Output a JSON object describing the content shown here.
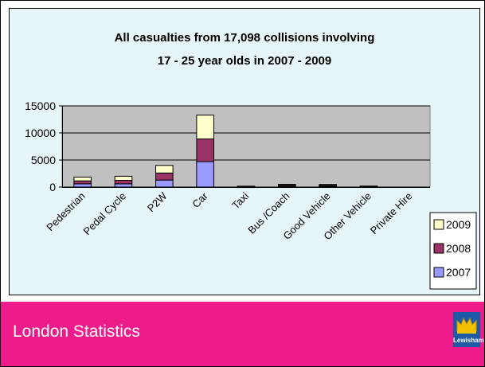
{
  "chart_data": {
    "type": "bar",
    "stacked": true,
    "title": [
      "All casualties from 17,098 collisions involving",
      "17 - 25 year olds in 2007 - 2009"
    ],
    "categories": [
      "Pedestrian",
      "Pedal Cycle",
      "P2W",
      "Car",
      "Taxi",
      "Bus /Coach",
      "Good Vehicle",
      "Other Vehicle",
      "Private Hire"
    ],
    "series": [
      {
        "name": "2007",
        "color": "#9999ff",
        "values": [
          600,
          600,
          1300,
          4700,
          60,
          180,
          170,
          70,
          0
        ]
      },
      {
        "name": "2008",
        "color": "#993366",
        "values": [
          550,
          650,
          1300,
          4200,
          50,
          170,
          150,
          60,
          0
        ]
      },
      {
        "name": "2009",
        "color": "#ffffcc",
        "values": [
          700,
          750,
          1400,
          4400,
          60,
          170,
          170,
          60,
          0
        ]
      }
    ],
    "yticks": [
      0,
      5000,
      10000,
      15000
    ],
    "ylim": [
      0,
      15000
    ],
    "grid": true,
    "legend_position": "right",
    "plot_background": "#c0c0c0"
  },
  "footer": {
    "title": "London Statistics",
    "logo_text": "Lewisham",
    "background": "#ee1b8a"
  }
}
